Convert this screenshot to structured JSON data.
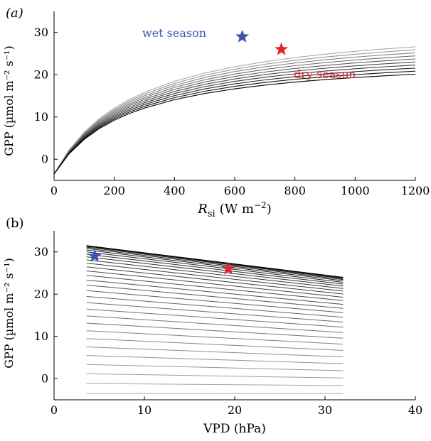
{
  "chart_data": [
    {
      "type": "line",
      "panel_label": "(a)",
      "xlabel_main": "R",
      "xlabel_sub": "si",
      "xlabel_unit": "(W m",
      "xlabel_unit_sup": "−2",
      "xlabel_close": ")",
      "ylabel": "GPP (µmol m⁻² s⁻¹)",
      "xlim": [
        0,
        1200
      ],
      "ylim": [
        -5,
        35
      ],
      "xticks": [
        0,
        200,
        400,
        600,
        800,
        1000,
        1200
      ],
      "yticks": [
        0,
        10,
        20,
        30
      ],
      "series_family": {
        "count": 10,
        "x": [
          0,
          50,
          100,
          150,
          200,
          250,
          300,
          400,
          500,
          600,
          700,
          800,
          900,
          1000,
          1100,
          1200
        ],
        "asymptote_start": 33.5,
        "asymptote_end": 25.0,
        "intercept": -3.5,
        "color_start": "#aaaaaa",
        "color_end": "#000000"
      },
      "annotations": [
        {
          "text": "wet season",
          "color": "#3a56a5"
        },
        {
          "text": "dry season",
          "color": "#e0262f"
        }
      ],
      "markers": [
        {
          "name": "wet-season",
          "x": 625,
          "y": 29,
          "color": "#3a56a5"
        },
        {
          "name": "dry-season",
          "x": 755,
          "y": 26,
          "color": "#e0262f"
        }
      ]
    },
    {
      "type": "line",
      "panel_label": "(b)",
      "xlabel": "VPD (hPa)",
      "ylabel": "GPP (µmol m⁻² s⁻¹)",
      "xlim": [
        0,
        40
      ],
      "ylim": [
        -5,
        35
      ],
      "xticks": [
        0,
        10,
        20,
        30,
        40
      ],
      "yticks": [
        0,
        10,
        20,
        30
      ],
      "series_family": {
        "count": 30,
        "x_range": [
          3.6,
          32
        ],
        "top_start": 31.5,
        "top_end": 24,
        "bottom_value": -3.5,
        "color_top": "#000000",
        "color_bottom": "#aaaaaa"
      },
      "markers": [
        {
          "name": "wet-season",
          "x": 4.5,
          "y": 29,
          "color": "#3a56a5"
        },
        {
          "name": "dry-season",
          "x": 19.3,
          "y": 26,
          "color": "#e0262f"
        }
      ]
    }
  ]
}
